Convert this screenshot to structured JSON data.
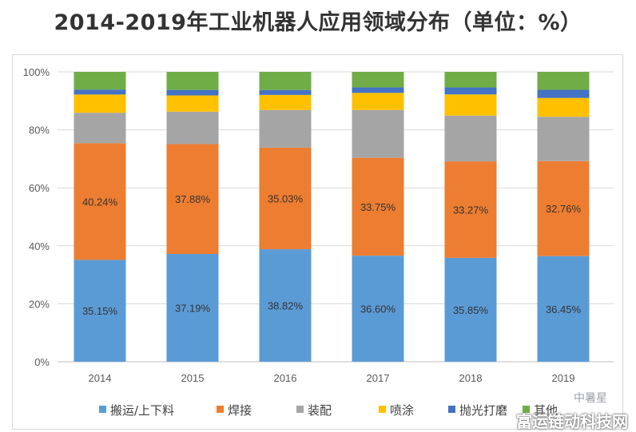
{
  "chart_data": {
    "type": "bar",
    "stacked": true,
    "title": "2014-2019年工业机器人应用领域分布（单位：%）",
    "categories": [
      "2014",
      "2015",
      "2016",
      "2017",
      "2018",
      "2019"
    ],
    "yticks": [
      "0%",
      "20%",
      "40%",
      "60%",
      "80%",
      "100%"
    ],
    "ylim": [
      0,
      100
    ],
    "series": [
      {
        "name": "搬运/上下料",
        "color": "#5b9bd5",
        "values": [
          35.15,
          37.19,
          38.82,
          36.6,
          35.85,
          36.45
        ],
        "labels": [
          "35.15%",
          "37.19%",
          "38.82%",
          "36.60%",
          "35.85%",
          "36.45%"
        ]
      },
      {
        "name": "焊接",
        "color": "#ed7d31",
        "values": [
          40.24,
          37.88,
          35.03,
          33.75,
          33.27,
          32.76
        ],
        "labels": [
          "40.24%",
          "37.88%",
          "35.03%",
          "33.75%",
          "33.27%",
          "32.76%"
        ]
      },
      {
        "name": "装配",
        "color": "#a5a5a5",
        "values": [
          10.5,
          11.2,
          13.0,
          16.5,
          15.8,
          15.3
        ]
      },
      {
        "name": "喷涂",
        "color": "#ffc000",
        "values": [
          6.3,
          5.6,
          5.2,
          5.9,
          7.3,
          6.5
        ]
      },
      {
        "name": "抛光打磨",
        "color": "#4472c4",
        "values": [
          1.7,
          1.9,
          1.7,
          1.9,
          2.4,
          2.8
        ]
      },
      {
        "name": "其他",
        "color": "#70ad47",
        "values": [
          6.11,
          6.23,
          6.25,
          5.35,
          5.38,
          6.19
        ]
      }
    ],
    "legend_position": "bottom"
  },
  "watermark": {
    "top": "中暑星",
    "bottom": "富运链动科技网"
  }
}
